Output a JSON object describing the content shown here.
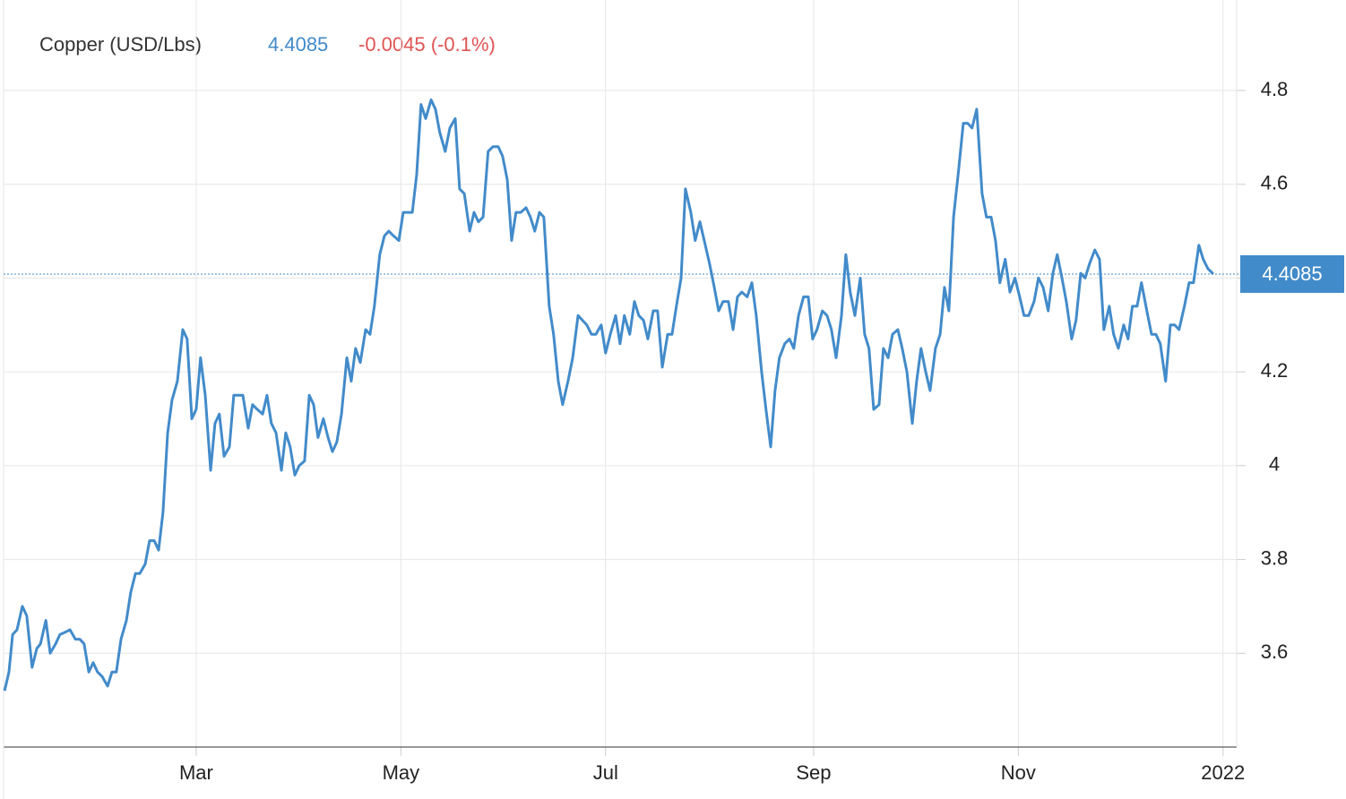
{
  "chart_data": {
    "type": "line",
    "title": "Copper (USD/Lbs)",
    "change": "-0.0045 (-0.1%)",
    "change_color": "#e05454",
    "color": "#428bca",
    "grid": true,
    "xlim": [
      0,
      368
    ],
    "ylim": [
      3.4,
      5.0
    ],
    "yticks": [
      3.6,
      3.8,
      4,
      4.2,
      4.4,
      4.6,
      4.8
    ],
    "xticks": [
      {
        "value": 59,
        "label": "Mar"
      },
      {
        "value": 120,
        "label": "May"
      },
      {
        "value": 181,
        "label": "Jul"
      },
      {
        "value": 243,
        "label": "Sep"
      },
      {
        "value": 304,
        "label": "Nov"
      },
      {
        "value": 365,
        "label": "2022"
      }
    ],
    "x": [
      1.9,
      3.2,
      4.3,
      5.6,
      7.2,
      8.5,
      10.1,
      11.5,
      12.6,
      14.2,
      15.5,
      17.1,
      18.4,
      20,
      21.4,
      23,
      24.3,
      25.6,
      27,
      28.3,
      29.6,
      31,
      32.6,
      33.9,
      35.2,
      36.6,
      38.2,
      39.5,
      40.9,
      42.2,
      43.8,
      45.1,
      46.5,
      47.8,
      49.1,
      50.5,
      51.8,
      53.4,
      55,
      56.3,
      57.7,
      59,
      60.3,
      61.7,
      63.3,
      64.6,
      65.9,
      67.3,
      68.9,
      70.2,
      71.6,
      72.9,
      74.5,
      75.8,
      77.2,
      78.8,
      80.1,
      81.4,
      82.8,
      84.4,
      85.7,
      87,
      88.4,
      89.7,
      91.3,
      92.7,
      94,
      95.3,
      96.9,
      98.3,
      99.6,
      100.9,
      102.3,
      103.9,
      105.2,
      106.5,
      107.9,
      109.5,
      110.8,
      112.1,
      113.7,
      115.1,
      116.4,
      117.8,
      119.4,
      120.7,
      122,
      123.4,
      124.7,
      126,
      127.4,
      129,
      130.3,
      131.6,
      133.2,
      134.6,
      136.2,
      137.5,
      138.9,
      140.5,
      141.8,
      143.1,
      144.5,
      146,
      147.4,
      149,
      150.3,
      151.7,
      153,
      154.3,
      155.7,
      157.3,
      158.6,
      159.9,
      161.3,
      162.6,
      164.2,
      165.5,
      166.9,
      168.2,
      169.8,
      171.2,
      172.8,
      174.1,
      175.4,
      176.8,
      178.1,
      179.7,
      181,
      182.4,
      184,
      185.3,
      186.6,
      188.2,
      189.6,
      190.9,
      192.3,
      193.6,
      195.2,
      196.5,
      197.9,
      199.5,
      200.8,
      202.1,
      203.5,
      204.8,
      206.4,
      207.7,
      209.1,
      210.4,
      212,
      213.4,
      214.7,
      216,
      217.6,
      219,
      220.3,
      221.6,
      223.2,
      224.6,
      225.9,
      227.5,
      228.8,
      230.2,
      231.5,
      232.8,
      234.4,
      235.8,
      237.1,
      238.5,
      240,
      241.4,
      242.7,
      244,
      245.6,
      247,
      248.3,
      249.7,
      251.3,
      252.6,
      253.9,
      255.3,
      256.9,
      258.2,
      259.5,
      260.9,
      262.5,
      263.8,
      265.2,
      266.5,
      268.1,
      269.4,
      270.8,
      272.4,
      273.7,
      275,
      276.4,
      277.7,
      279.3,
      280.7,
      282,
      283.3,
      284.7,
      286.2,
      287.6,
      288.9,
      290.2,
      291.6,
      293.2,
      294.5,
      295.9,
      297.2,
      298.5,
      300.1,
      301.5,
      303,
      304.4,
      305.7,
      307.1,
      308.7,
      310,
      311.4,
      312.9,
      314.3,
      315.6,
      317,
      318.3,
      319.9,
      321.2,
      322.6,
      323.9,
      325.2,
      326.8,
      328.2,
      329.5,
      331.1,
      332.4,
      333.8,
      335.4,
      336.7,
      338,
      339.4,
      340.7,
      342.3,
      343.7,
      345,
      346.3,
      347.9,
      349.3,
      350.6,
      351.9,
      353.5,
      354.9,
      356.2,
      357.8,
      359.1,
      360.5,
      362.1
    ],
    "values": [
      3.52,
      3.56,
      3.64,
      3.65,
      3.7,
      3.68,
      3.57,
      3.61,
      3.62,
      3.67,
      3.6,
      3.62,
      3.64,
      3.645,
      3.65,
      3.63,
      3.63,
      3.62,
      3.56,
      3.58,
      3.56,
      3.55,
      3.53,
      3.56,
      3.56,
      3.63,
      3.67,
      3.73,
      3.77,
      3.77,
      3.79,
      3.84,
      3.84,
      3.82,
      3.9,
      4.07,
      4.14,
      4.18,
      4.29,
      4.27,
      4.1,
      4.12,
      4.23,
      4.15,
      3.99,
      4.09,
      4.11,
      4.02,
      4.04,
      4.15,
      4.15,
      4.15,
      4.08,
      4.13,
      4.12,
      4.11,
      4.15,
      4.09,
      4.07,
      3.99,
      4.07,
      4.04,
      3.98,
      4.0,
      4.01,
      4.15,
      4.13,
      4.06,
      4.1,
      4.06,
      4.03,
      4.05,
      4.11,
      4.23,
      4.18,
      4.25,
      4.22,
      4.29,
      4.28,
      4.34,
      4.45,
      4.49,
      4.5,
      4.49,
      4.48,
      4.54,
      4.54,
      4.54,
      4.62,
      4.77,
      4.74,
      4.78,
      4.76,
      4.71,
      4.67,
      4.72,
      4.74,
      4.59,
      4.58,
      4.5,
      4.54,
      4.52,
      4.53,
      4.67,
      4.68,
      4.68,
      4.66,
      4.61,
      4.48,
      4.54,
      4.54,
      4.55,
      4.53,
      4.5,
      4.54,
      4.53,
      4.34,
      4.28,
      4.18,
      4.13,
      4.18,
      4.23,
      4.32,
      4.31,
      4.3,
      4.28,
      4.28,
      4.3,
      4.24,
      4.28,
      4.32,
      4.26,
      4.32,
      4.28,
      4.35,
      4.32,
      4.31,
      4.27,
      4.33,
      4.33,
      4.21,
      4.28,
      4.28,
      4.34,
      4.4,
      4.59,
      4.54,
      4.48,
      4.52,
      4.48,
      4.43,
      4.38,
      4.33,
      4.35,
      4.35,
      4.29,
      4.36,
      4.37,
      4.36,
      4.39,
      4.32,
      4.2,
      4.12,
      4.04,
      4.16,
      4.23,
      4.26,
      4.27,
      4.25,
      4.32,
      4.36,
      4.36,
      4.27,
      4.29,
      4.33,
      4.32,
      4.29,
      4.23,
      4.32,
      4.45,
      4.37,
      4.32,
      4.4,
      4.28,
      4.25,
      4.12,
      4.13,
      4.25,
      4.23,
      4.28,
      4.29,
      4.25,
      4.2,
      4.09,
      4.18,
      4.25,
      4.2,
      4.16,
      4.25,
      4.28,
      4.38,
      4.33,
      4.53,
      4.63,
      4.73,
      4.73,
      4.72,
      4.76,
      4.58,
      4.53,
      4.53,
      4.48,
      4.39,
      4.44,
      4.37,
      4.4,
      4.36,
      4.32,
      4.32,
      4.35,
      4.4,
      4.38,
      4.33,
      4.41,
      4.45,
      4.4,
      4.35,
      4.27,
      4.31,
      4.41,
      4.4,
      4.43,
      4.46,
      4.44,
      4.29,
      4.34,
      4.28,
      4.25,
      4.3,
      4.27,
      4.34,
      4.34,
      4.39,
      4.33,
      4.28,
      4.28,
      4.26,
      4.18,
      4.3,
      4.3,
      4.29,
      4.34,
      4.39,
      4.39,
      4.47,
      4.44,
      4.42,
      4.4085
    ]
  }
}
